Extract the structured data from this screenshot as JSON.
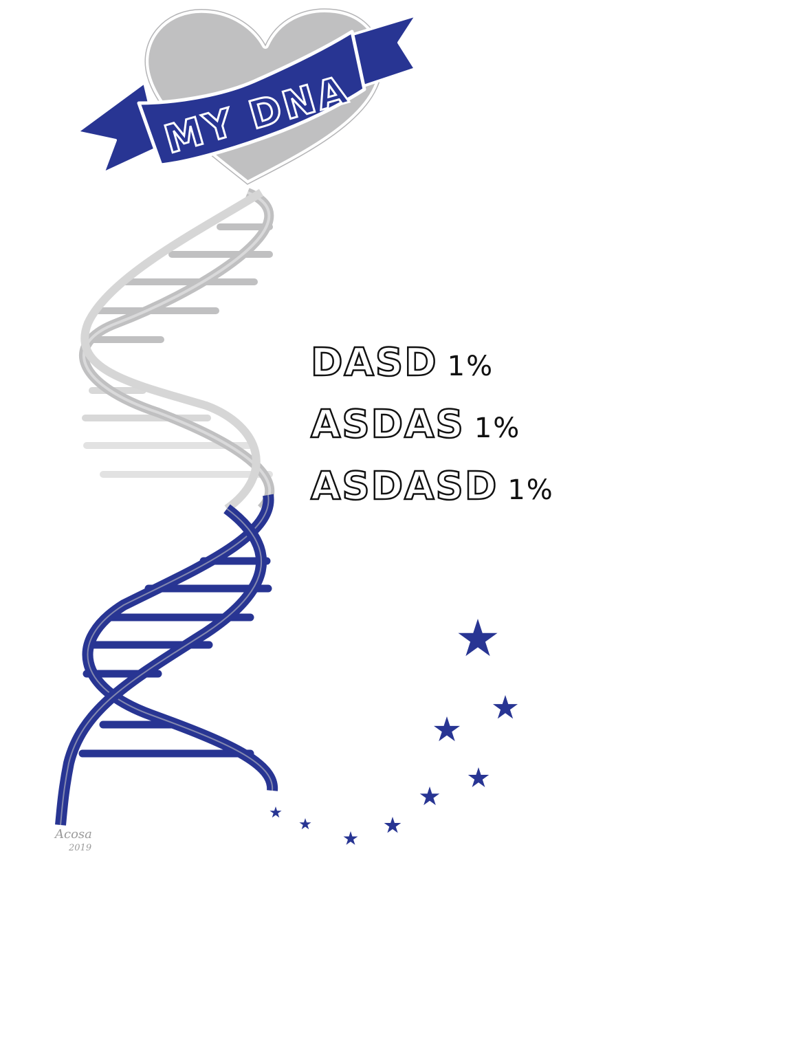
{
  "banner": {
    "text": "MY DNA"
  },
  "lines": [
    {
      "label": "DASD",
      "percent": "1%"
    },
    {
      "label": "ASDAS",
      "percent": "1%"
    },
    {
      "label": "ASDASD",
      "percent": "1%"
    }
  ],
  "signature": {
    "name": "Acosa",
    "year": "2019"
  },
  "colors": {
    "navy": "#283593",
    "gray": "#c0c0c1",
    "outline": "#ffffff"
  }
}
